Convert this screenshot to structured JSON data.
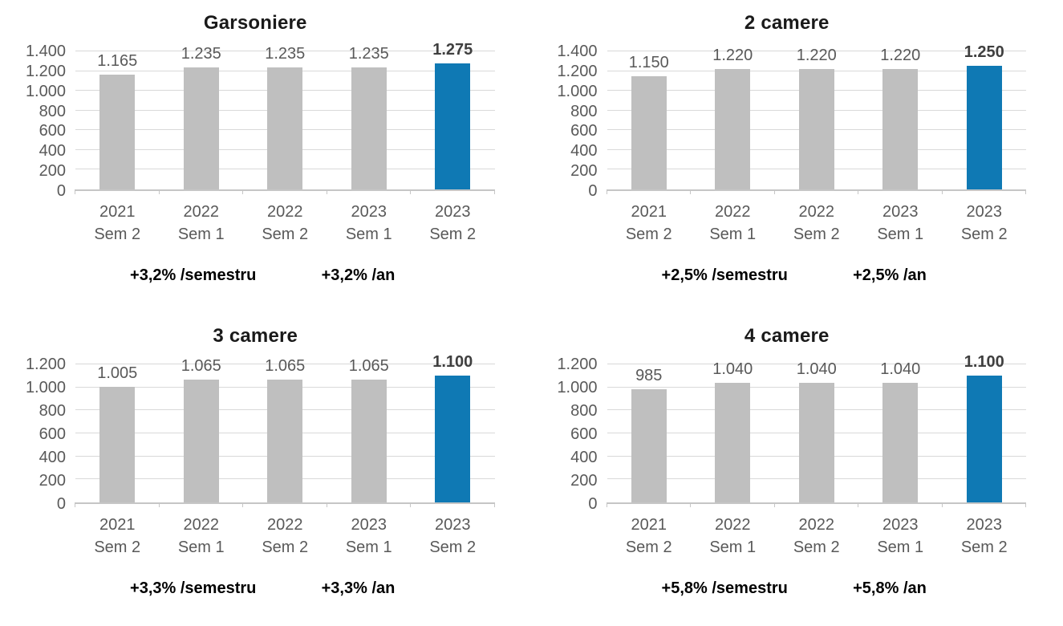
{
  "page": {
    "background": "#ffffff"
  },
  "colors": {
    "bar_default": "#bfbfbf",
    "bar_highlight": "#0f79b4",
    "gridline": "#d9d9d9",
    "axis_line": "#c6c6c6",
    "tick_text": "#595959",
    "value_text": "#595959",
    "value_text_highlight": "#3f3f3f",
    "title_text": "#1a1a1a",
    "annotation_text": "#000000"
  },
  "chart_data": [
    {
      "type": "bar",
      "title": "Garsoniere",
      "categories": [
        "2021 Sem 2",
        "2022 Sem 1",
        "2022 Sem 2",
        "2023 Sem 1",
        "2023 Sem 2"
      ],
      "category_lines": [
        [
          "2021",
          "Sem 2"
        ],
        [
          "2022",
          "Sem 1"
        ],
        [
          "2022",
          "Sem 2"
        ],
        [
          "2023",
          "Sem 1"
        ],
        [
          "2023",
          "Sem 2"
        ]
      ],
      "values": [
        1165,
        1235,
        1235,
        1235,
        1275
      ],
      "value_labels": [
        "1.165",
        "1.235",
        "1.235",
        "1.235",
        "1.275"
      ],
      "highlight_index": 4,
      "xlabel": "",
      "ylabel": "",
      "ylim": [
        0,
        1400
      ],
      "ytick_step": 200,
      "ytick_labels": [
        "1.400",
        "1.200",
        "1.000",
        "800",
        "600",
        "400",
        "200",
        "0"
      ],
      "grid": true,
      "legend": false,
      "annotations": [
        "+3,2% /semestru",
        "+3,2% /an"
      ]
    },
    {
      "type": "bar",
      "title": "2 camere",
      "categories": [
        "2021 Sem 2",
        "2022 Sem 1",
        "2022 Sem 2",
        "2023 Sem 1",
        "2023 Sem 2"
      ],
      "category_lines": [
        [
          "2021",
          "Sem 2"
        ],
        [
          "2022",
          "Sem 1"
        ],
        [
          "2022",
          "Sem 2"
        ],
        [
          "2023",
          "Sem 1"
        ],
        [
          "2023",
          "Sem 2"
        ]
      ],
      "values": [
        1150,
        1220,
        1220,
        1220,
        1250
      ],
      "value_labels": [
        "1.150",
        "1.220",
        "1.220",
        "1.220",
        "1.250"
      ],
      "highlight_index": 4,
      "xlabel": "",
      "ylabel": "",
      "ylim": [
        0,
        1400
      ],
      "ytick_step": 200,
      "ytick_labels": [
        "1.400",
        "1.200",
        "1.000",
        "800",
        "600",
        "400",
        "200",
        "0"
      ],
      "grid": true,
      "legend": false,
      "annotations": [
        "+2,5% /semestru",
        "+2,5% /an"
      ]
    },
    {
      "type": "bar",
      "title": "3 camere",
      "categories": [
        "2021 Sem 2",
        "2022 Sem 1",
        "2022 Sem 2",
        "2023 Sem 1",
        "2023 Sem 2"
      ],
      "category_lines": [
        [
          "2021",
          "Sem 2"
        ],
        [
          "2022",
          "Sem 1"
        ],
        [
          "2022",
          "Sem 2"
        ],
        [
          "2023",
          "Sem 1"
        ],
        [
          "2023",
          "Sem 2"
        ]
      ],
      "values": [
        1005,
        1065,
        1065,
        1065,
        1100
      ],
      "value_labels": [
        "1.005",
        "1.065",
        "1.065",
        "1.065",
        "1.100"
      ],
      "highlight_index": 4,
      "xlabel": "",
      "ylabel": "",
      "ylim": [
        0,
        1200
      ],
      "ytick_step": 200,
      "ytick_labels": [
        "1.200",
        "1.000",
        "800",
        "600",
        "400",
        "200",
        "0"
      ],
      "grid": true,
      "legend": false,
      "annotations": [
        "+3,3% /semestru",
        "+3,3% /an"
      ]
    },
    {
      "type": "bar",
      "title": "4 camere",
      "categories": [
        "2021 Sem 2",
        "2022 Sem 1",
        "2022 Sem 2",
        "2023 Sem 1",
        "2023 Sem 2"
      ],
      "category_lines": [
        [
          "2021",
          "Sem 2"
        ],
        [
          "2022",
          "Sem 1"
        ],
        [
          "2022",
          "Sem 2"
        ],
        [
          "2023",
          "Sem 1"
        ],
        [
          "2023",
          "Sem 2"
        ]
      ],
      "values": [
        985,
        1040,
        1040,
        1040,
        1100
      ],
      "value_labels": [
        "985",
        "1.040",
        "1.040",
        "1.040",
        "1.100"
      ],
      "highlight_index": 4,
      "xlabel": "",
      "ylabel": "",
      "ylim": [
        0,
        1200
      ],
      "ytick_step": 200,
      "ytick_labels": [
        "1.200",
        "1.000",
        "800",
        "600",
        "400",
        "200",
        "0"
      ],
      "grid": true,
      "legend": false,
      "annotations": [
        "+5,8% /semestru",
        "+5,8% /an"
      ]
    }
  ]
}
